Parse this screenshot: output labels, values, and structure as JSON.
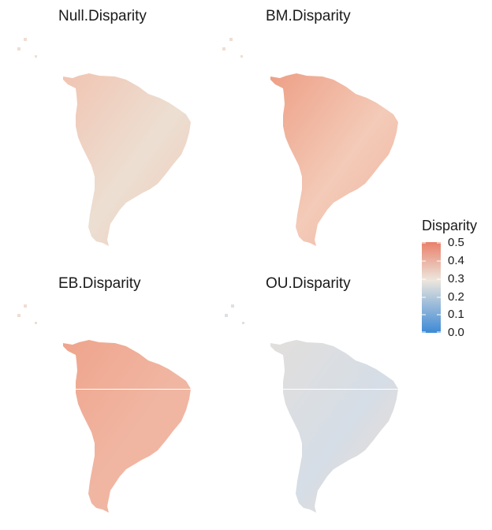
{
  "panels": [
    {
      "title": "Null.Disparity",
      "gradient": {
        "base": "#f3cdbe",
        "north": "#f1c4b2",
        "east": "#ecdfd2",
        "south": "#f0c7b6"
      }
    },
    {
      "title": "BM.Disparity",
      "gradient": {
        "base": "#f1ae98",
        "north": "#ee9f86",
        "east": "#f3cbb8",
        "south": "#f0b29e"
      }
    },
    {
      "title": "EB.Disparity",
      "gradient": {
        "base": "#f2b19c",
        "north": "#efa48c",
        "east": "#f0b6a2",
        "south": "#f2b7a3"
      }
    },
    {
      "title": "OU.Disparity",
      "gradient": {
        "base": "#e9e2da",
        "north": "#e2dfdc",
        "east": "#d5dde6",
        "south": "#efddd1"
      }
    }
  ],
  "legend": {
    "title": "Disparity",
    "ticks": [
      "0.5",
      "0.4",
      "0.3",
      "0.2",
      "0.1",
      "0.0"
    ],
    "colors": {
      "high": "#e9806a",
      "mid": "#ece6dd",
      "low": "#3d8ad6"
    }
  }
}
